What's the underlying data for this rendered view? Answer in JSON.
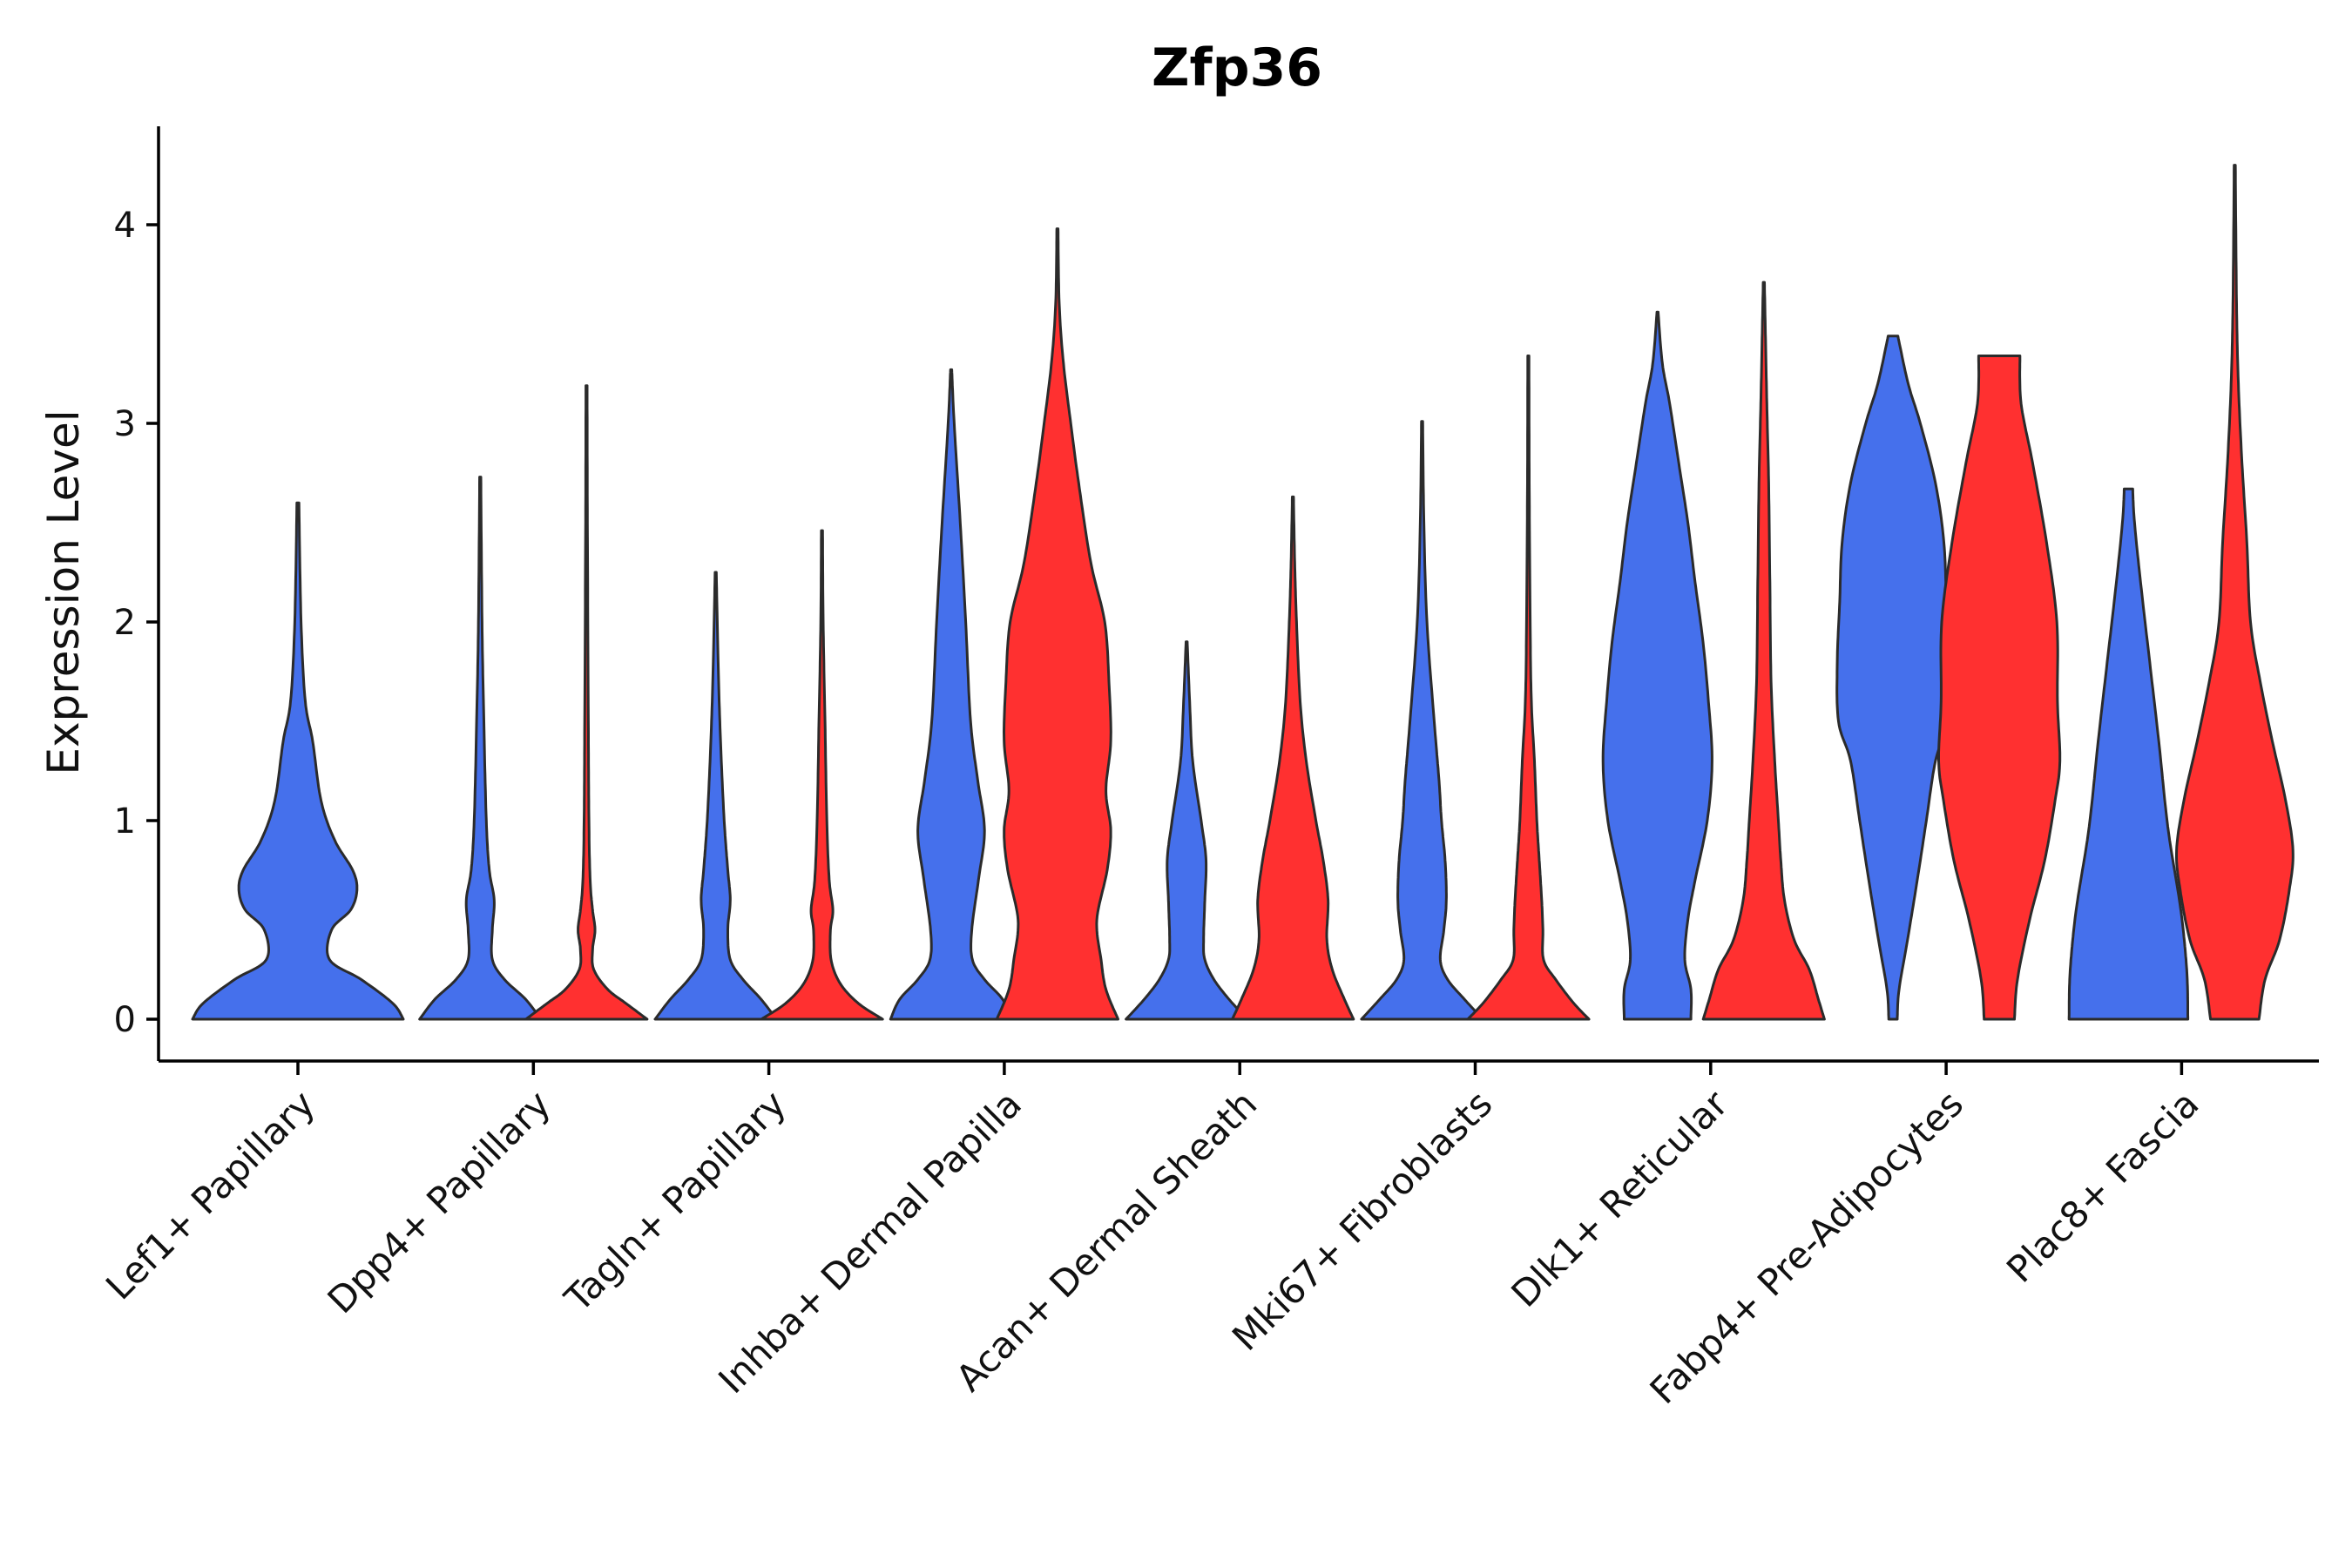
{
  "chart_data": {
    "type": "violin",
    "title": "Zfp36",
    "xlabel": "",
    "ylabel": "Expression Level",
    "ylim": [
      -0.22,
      4.52
    ],
    "yticks": [
      0,
      1,
      2,
      3,
      4
    ],
    "grid": false,
    "legend": "none",
    "series_colors": {
      "group1": "#4570EC",
      "group2": "#FF3030"
    },
    "categories": [
      "Lef1+ Papillary",
      "Dpp4+ Papillary",
      "Tagln+ Papillary",
      "Inhba+ Dermal Papilla",
      "Acan+ Dermal Sheath",
      "Mki67+ Fibroblasts",
      "Dlk1+ Reticular",
      "Fabp4+ Pre-Adipocytes",
      "Plac8+ Fascia"
    ],
    "violins": [
      {
        "category": "Lef1+ Papillary",
        "group": "group1",
        "color": "#4570EC",
        "min": 0,
        "max": 2.6,
        "profile": [
          [
            0,
            1.0
          ],
          [
            0.08,
            0.9
          ],
          [
            0.2,
            0.6
          ],
          [
            0.3,
            0.3
          ],
          [
            0.45,
            0.32
          ],
          [
            0.55,
            0.5
          ],
          [
            0.65,
            0.56
          ],
          [
            0.75,
            0.52
          ],
          [
            0.9,
            0.35
          ],
          [
            1.1,
            0.22
          ],
          [
            1.4,
            0.14
          ],
          [
            1.6,
            0.07
          ],
          [
            2.0,
            0.03
          ],
          [
            2.6,
            0.01
          ]
        ]
      },
      {
        "category": "Dpp4+ Papillary",
        "group": "group1",
        "color": "#4570EC",
        "min": 0,
        "max": 2.73,
        "profile": [
          [
            0,
            1.0
          ],
          [
            0.1,
            0.75
          ],
          [
            0.2,
            0.4
          ],
          [
            0.3,
            0.2
          ],
          [
            0.45,
            0.2
          ],
          [
            0.6,
            0.23
          ],
          [
            0.75,
            0.15
          ],
          [
            1.0,
            0.1
          ],
          [
            1.5,
            0.06
          ],
          [
            2.0,
            0.03
          ],
          [
            2.73,
            0.01
          ]
        ]
      },
      {
        "category": "Dpp4+ Papillary",
        "group": "group2",
        "color": "#FF3030",
        "min": 0,
        "max": 3.19,
        "profile": [
          [
            0,
            1.0
          ],
          [
            0.08,
            0.65
          ],
          [
            0.15,
            0.35
          ],
          [
            0.25,
            0.12
          ],
          [
            0.35,
            0.1
          ],
          [
            0.45,
            0.14
          ],
          [
            0.55,
            0.1
          ],
          [
            0.7,
            0.06
          ],
          [
            1.0,
            0.04
          ],
          [
            1.5,
            0.03
          ],
          [
            2.5,
            0.015
          ],
          [
            3.19,
            0.01
          ]
        ]
      },
      {
        "category": "Tagln+ Papillary",
        "group": "group1",
        "color": "#4570EC",
        "min": 0,
        "max": 2.25,
        "profile": [
          [
            0,
            1.0
          ],
          [
            0.1,
            0.75
          ],
          [
            0.2,
            0.45
          ],
          [
            0.3,
            0.24
          ],
          [
            0.45,
            0.2
          ],
          [
            0.6,
            0.24
          ],
          [
            0.75,
            0.2
          ],
          [
            1.0,
            0.14
          ],
          [
            1.4,
            0.08
          ],
          [
            1.8,
            0.04
          ],
          [
            2.25,
            0.01
          ]
        ]
      },
      {
        "category": "Tagln+ Papillary",
        "group": "group2",
        "color": "#FF3030",
        "min": 0,
        "max": 2.46,
        "profile": [
          [
            0,
            1.0
          ],
          [
            0.08,
            0.6
          ],
          [
            0.18,
            0.3
          ],
          [
            0.3,
            0.15
          ],
          [
            0.45,
            0.14
          ],
          [
            0.55,
            0.18
          ],
          [
            0.7,
            0.12
          ],
          [
            1.0,
            0.08
          ],
          [
            1.5,
            0.05
          ],
          [
            2.0,
            0.02
          ],
          [
            2.46,
            0.01
          ]
        ]
      },
      {
        "category": "Inhba+ Dermal Papilla",
        "group": "group1",
        "color": "#4570EC",
        "min": 0,
        "max": 3.27,
        "profile": [
          [
            0,
            1.0
          ],
          [
            0.1,
            0.85
          ],
          [
            0.2,
            0.55
          ],
          [
            0.3,
            0.35
          ],
          [
            0.45,
            0.34
          ],
          [
            0.7,
            0.45
          ],
          [
            0.95,
            0.55
          ],
          [
            1.2,
            0.44
          ],
          [
            1.5,
            0.32
          ],
          [
            2.0,
            0.24
          ],
          [
            2.5,
            0.15
          ],
          [
            3.0,
            0.05
          ],
          [
            3.27,
            0.01
          ]
        ]
      },
      {
        "category": "Inhba+ Dermal Papilla",
        "group": "group2",
        "color": "#FF3030",
        "min": 0,
        "max": 3.98,
        "profile": [
          [
            0,
            1.0
          ],
          [
            0.15,
            0.8
          ],
          [
            0.3,
            0.72
          ],
          [
            0.5,
            0.65
          ],
          [
            0.75,
            0.82
          ],
          [
            0.95,
            0.88
          ],
          [
            1.15,
            0.8
          ],
          [
            1.4,
            0.88
          ],
          [
            1.7,
            0.85
          ],
          [
            2.0,
            0.78
          ],
          [
            2.3,
            0.55
          ],
          [
            2.7,
            0.35
          ],
          [
            3.0,
            0.22
          ],
          [
            3.3,
            0.1
          ],
          [
            3.6,
            0.03
          ],
          [
            3.98,
            0.01
          ]
        ]
      },
      {
        "category": "Acan+ Dermal Sheath",
        "group": "group1",
        "color": "#4570EC",
        "min": 0,
        "max": 1.9,
        "profile": [
          [
            0,
            1.0
          ],
          [
            0.1,
            0.7
          ],
          [
            0.2,
            0.45
          ],
          [
            0.3,
            0.3
          ],
          [
            0.4,
            0.28
          ],
          [
            0.6,
            0.3
          ],
          [
            0.8,
            0.32
          ],
          [
            1.0,
            0.24
          ],
          [
            1.3,
            0.1
          ],
          [
            1.6,
            0.05
          ],
          [
            1.9,
            0.01
          ]
        ]
      },
      {
        "category": "Acan+ Dermal Sheath",
        "group": "group2",
        "color": "#FF3030",
        "min": 0,
        "max": 2.63,
        "profile": [
          [
            0,
            1.0
          ],
          [
            0.1,
            0.85
          ],
          [
            0.25,
            0.65
          ],
          [
            0.4,
            0.56
          ],
          [
            0.6,
            0.58
          ],
          [
            0.8,
            0.5
          ],
          [
            1.0,
            0.38
          ],
          [
            1.3,
            0.22
          ],
          [
            1.6,
            0.12
          ],
          [
            2.0,
            0.06
          ],
          [
            2.3,
            0.03
          ],
          [
            2.63,
            0.01
          ]
        ]
      },
      {
        "category": "Mki67+ Fibroblasts",
        "group": "group1",
        "color": "#4570EC",
        "min": 0,
        "max": 3.01,
        "profile": [
          [
            0,
            1.0
          ],
          [
            0.1,
            0.7
          ],
          [
            0.2,
            0.42
          ],
          [
            0.3,
            0.3
          ],
          [
            0.45,
            0.36
          ],
          [
            0.6,
            0.4
          ],
          [
            0.8,
            0.38
          ],
          [
            1.0,
            0.32
          ],
          [
            1.2,
            0.28
          ],
          [
            1.5,
            0.2
          ],
          [
            2.0,
            0.08
          ],
          [
            2.5,
            0.03
          ],
          [
            3.01,
            0.01
          ]
        ]
      },
      {
        "category": "Mki67+ Fibroblasts",
        "group": "group2",
        "color": "#FF3030",
        "min": 0,
        "max": 3.34,
        "profile": [
          [
            0,
            1.0
          ],
          [
            0.08,
            0.75
          ],
          [
            0.2,
            0.45
          ],
          [
            0.3,
            0.25
          ],
          [
            0.45,
            0.24
          ],
          [
            0.6,
            0.22
          ],
          [
            0.8,
            0.18
          ],
          [
            1.0,
            0.14
          ],
          [
            1.3,
            0.1
          ],
          [
            1.6,
            0.05
          ],
          [
            2.0,
            0.03
          ],
          [
            2.7,
            0.015
          ],
          [
            3.34,
            0.01
          ]
        ]
      },
      {
        "category": "Dlk1+ Reticular",
        "group": "group1",
        "color": "#4570EC",
        "min": 0,
        "max": 3.56,
        "profile": [
          [
            0,
            0.55
          ],
          [
            0.15,
            0.55
          ],
          [
            0.3,
            0.45
          ],
          [
            0.5,
            0.5
          ],
          [
            0.7,
            0.62
          ],
          [
            1.0,
            0.82
          ],
          [
            1.3,
            0.9
          ],
          [
            1.6,
            0.84
          ],
          [
            1.9,
            0.75
          ],
          [
            2.2,
            0.62
          ],
          [
            2.5,
            0.5
          ],
          [
            2.8,
            0.35
          ],
          [
            3.1,
            0.2
          ],
          [
            3.3,
            0.08
          ],
          [
            3.56,
            0.01
          ]
        ]
      },
      {
        "category": "Dlk1+ Reticular",
        "group": "group2",
        "color": "#FF3030",
        "min": 0,
        "max": 3.71,
        "profile": [
          [
            0,
            1.0
          ],
          [
            0.1,
            0.9
          ],
          [
            0.25,
            0.75
          ],
          [
            0.4,
            0.5
          ],
          [
            0.6,
            0.34
          ],
          [
            0.8,
            0.28
          ],
          [
            1.0,
            0.24
          ],
          [
            1.3,
            0.18
          ],
          [
            1.7,
            0.12
          ],
          [
            2.2,
            0.1
          ],
          [
            2.7,
            0.08
          ],
          [
            3.1,
            0.05
          ],
          [
            3.4,
            0.03
          ],
          [
            3.71,
            0.01
          ]
        ]
      },
      {
        "category": "Fabp4+ Pre-Adipocytes",
        "group": "group1",
        "color": "#4570EC",
        "min": 0,
        "max": 3.44,
        "profile": [
          [
            0,
            0.07
          ],
          [
            0.15,
            0.1
          ],
          [
            0.4,
            0.24
          ],
          [
            0.7,
            0.4
          ],
          [
            1.0,
            0.55
          ],
          [
            1.3,
            0.7
          ],
          [
            1.5,
            0.9
          ],
          [
            1.8,
            0.92
          ],
          [
            2.1,
            0.88
          ],
          [
            2.4,
            0.84
          ],
          [
            2.7,
            0.7
          ],
          [
            3.0,
            0.45
          ],
          [
            3.2,
            0.25
          ],
          [
            3.44,
            0.08
          ]
        ]
      },
      {
        "category": "Fabp4+ Pre-Adipocytes",
        "group": "group2",
        "color": "#FF3030",
        "min": 0,
        "max": 3.34,
        "profile": [
          [
            0,
            0.25
          ],
          [
            0.2,
            0.3
          ],
          [
            0.5,
            0.5
          ],
          [
            0.8,
            0.75
          ],
          [
            1.1,
            0.92
          ],
          [
            1.3,
            1.0
          ],
          [
            1.6,
            0.96
          ],
          [
            2.0,
            0.95
          ],
          [
            2.4,
            0.78
          ],
          [
            2.8,
            0.55
          ],
          [
            3.1,
            0.36
          ],
          [
            3.34,
            0.34
          ]
        ]
      },
      {
        "category": "Plac8+ Fascia",
        "group": "group1",
        "color": "#4570EC",
        "min": 0,
        "max": 2.67,
        "profile": [
          [
            0,
            0.98
          ],
          [
            0.2,
            0.97
          ],
          [
            0.4,
            0.92
          ],
          [
            0.6,
            0.84
          ],
          [
            0.9,
            0.68
          ],
          [
            1.1,
            0.6
          ],
          [
            1.4,
            0.5
          ],
          [
            1.8,
            0.35
          ],
          [
            2.2,
            0.2
          ],
          [
            2.5,
            0.1
          ],
          [
            2.67,
            0.07
          ]
        ]
      },
      {
        "category": "Plac8+ Fascia",
        "group": "group2",
        "color": "#FF3030",
        "min": 0,
        "max": 4.3,
        "profile": [
          [
            0,
            0.4
          ],
          [
            0.2,
            0.5
          ],
          [
            0.4,
            0.74
          ],
          [
            0.65,
            0.9
          ],
          [
            0.85,
            0.96
          ],
          [
            1.1,
            0.84
          ],
          [
            1.4,
            0.62
          ],
          [
            1.7,
            0.42
          ],
          [
            2.0,
            0.26
          ],
          [
            2.4,
            0.2
          ],
          [
            2.8,
            0.12
          ],
          [
            3.2,
            0.06
          ],
          [
            3.6,
            0.03
          ],
          [
            4.3,
            0.01
          ]
        ]
      }
    ]
  }
}
